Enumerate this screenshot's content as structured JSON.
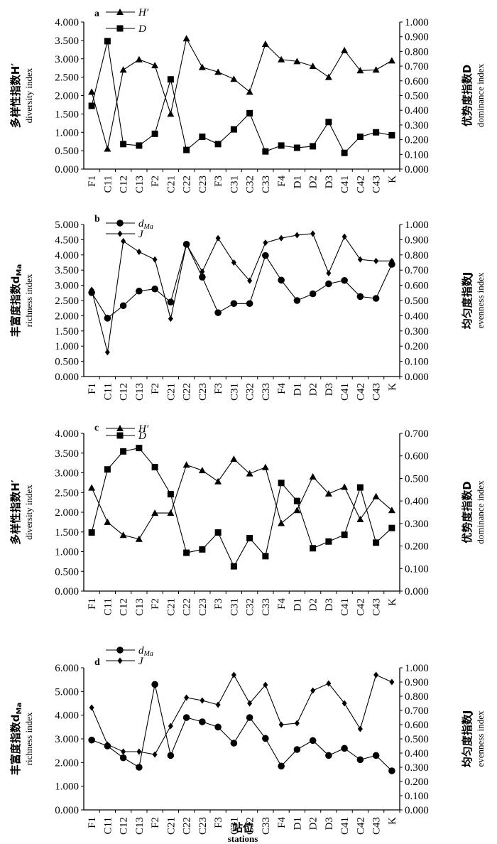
{
  "chart_data": [
    {
      "type": "line",
      "panel_label": "a",
      "categories": [
        "F1",
        "C11",
        "C12",
        "C13",
        "F2",
        "C21",
        "C22",
        "C23",
        "F3",
        "C31",
        "C32",
        "C33",
        "F4",
        "D1",
        "D2",
        "D3",
        "C41",
        "C42",
        "C43",
        "K"
      ],
      "left_axis": {
        "label_cn": "多样性指数H′",
        "label_en": "diversity index",
        "ylim": [
          0,
          4
        ],
        "ticks": [
          "0.000",
          "0.500",
          "1.000",
          "1.500",
          "2.000",
          "2.500",
          "3.000",
          "3.500",
          "4.000"
        ]
      },
      "right_axis": {
        "label_cn": "优势度指数D",
        "label_en": "dominance index",
        "ylim": [
          0,
          1
        ],
        "ticks": [
          "0.000",
          "0.100",
          "0.200",
          "0.300",
          "0.400",
          "0.500",
          "0.600",
          "0.700",
          "0.800",
          "0.900",
          "1.000"
        ]
      },
      "series": [
        {
          "name": "H′",
          "axis": "left",
          "marker": "triangle",
          "values": [
            2.1,
            0.55,
            2.7,
            2.98,
            2.82,
            1.5,
            3.55,
            2.77,
            2.64,
            2.45,
            2.1,
            3.4,
            2.98,
            2.93,
            2.8,
            2.5,
            3.23,
            2.68,
            2.7,
            2.95
          ]
        },
        {
          "name": "D",
          "axis": "right",
          "marker": "square",
          "values": [
            0.43,
            0.87,
            0.17,
            0.16,
            0.24,
            0.61,
            0.13,
            0.22,
            0.17,
            0.27,
            0.38,
            0.12,
            0.16,
            0.145,
            0.155,
            0.32,
            0.11,
            0.22,
            0.25,
            0.23
          ]
        }
      ]
    },
    {
      "type": "line",
      "panel_label": "b",
      "categories": [
        "F1",
        "C11",
        "C12",
        "C13",
        "F2",
        "C21",
        "C22",
        "C23",
        "F3",
        "C31",
        "C32",
        "C33",
        "F4",
        "D1",
        "D2",
        "D3",
        "C41",
        "C42",
        "C43",
        "K"
      ],
      "left_axis": {
        "label_cn": "丰富度指数d",
        "label_sub": "Ma",
        "label_en": "richness index",
        "ylim": [
          0,
          5
        ],
        "ticks": [
          "0.000",
          "0.500",
          "1.000",
          "1.500",
          "2.000",
          "2.500",
          "3.000",
          "3.500",
          "4.000",
          "4.500",
          "5.000"
        ]
      },
      "right_axis": {
        "label_cn": "均匀度指数J",
        "label_en": "evenness index",
        "ylim": [
          0,
          1
        ],
        "ticks": [
          "0.000",
          "0.100",
          "0.200",
          "0.300",
          "0.400",
          "0.500",
          "0.600",
          "0.700",
          "0.800",
          "0.900",
          "1.000"
        ]
      },
      "series": [
        {
          "name": "d",
          "name_sub": "Ma",
          "axis": "left",
          "marker": "circle",
          "values": [
            2.76,
            1.92,
            2.33,
            2.81,
            2.88,
            2.45,
            4.35,
            3.27,
            2.1,
            2.4,
            2.4,
            3.98,
            3.17,
            2.5,
            2.72,
            3.05,
            3.16,
            2.63,
            2.57,
            3.69
          ]
        },
        {
          "name": "J",
          "axis": "right",
          "marker": "diamond",
          "values": [
            0.57,
            0.16,
            0.89,
            0.82,
            0.77,
            0.38,
            0.87,
            0.69,
            0.91,
            0.75,
            0.63,
            0.88,
            0.91,
            0.93,
            0.94,
            0.68,
            0.92,
            0.77,
            0.76,
            0.76
          ]
        }
      ]
    },
    {
      "type": "line",
      "panel_label": "c",
      "categories": [
        "F1",
        "C11",
        "C12",
        "C13",
        "F2",
        "C21",
        "C22",
        "C23",
        "F3",
        "C31",
        "C32",
        "C33",
        "F4",
        "D1",
        "D2",
        "D3",
        "C41",
        "C42",
        "C43",
        "K"
      ],
      "left_axis": {
        "label_cn": "多样性指数H′",
        "label_en": "diversity index",
        "ylim": [
          0,
          4
        ],
        "ticks": [
          "0.000",
          "0.500",
          "1.000",
          "1.500",
          "2.000",
          "2.500",
          "3.000",
          "3.500",
          "4.000"
        ]
      },
      "right_axis": {
        "label_cn": "优势度指数D",
        "label_en": "dominance index",
        "ylim": [
          0,
          0.7
        ],
        "ticks": [
          "0.000",
          "0.100",
          "0.200",
          "0.300",
          "0.400",
          "0.500",
          "0.600",
          "0.700"
        ]
      },
      "series": [
        {
          "name": "H′",
          "axis": "left",
          "marker": "triangle",
          "values": [
            2.62,
            1.75,
            1.42,
            1.32,
            1.98,
            1.98,
            3.2,
            3.06,
            2.78,
            3.35,
            2.98,
            3.14,
            1.72,
            2.05,
            2.9,
            2.47,
            2.64,
            1.82,
            2.4,
            2.05
          ]
        },
        {
          "name": "D",
          "axis": "right",
          "marker": "square",
          "values": [
            0.26,
            0.54,
            0.62,
            0.635,
            0.55,
            0.43,
            0.17,
            0.185,
            0.26,
            0.11,
            0.235,
            0.155,
            0.48,
            0.4,
            0.19,
            0.22,
            0.25,
            0.46,
            0.215,
            0.28
          ]
        }
      ]
    },
    {
      "type": "line",
      "panel_label": "d",
      "categories": [
        "F1",
        "C11",
        "C12",
        "C13",
        "F2",
        "C21",
        "C22",
        "C23",
        "F3",
        "C31",
        "C32",
        "C33",
        "F4",
        "D1",
        "D2",
        "D3",
        "C41",
        "C42",
        "C43",
        "K"
      ],
      "left_axis": {
        "label_cn": "丰富度指数d",
        "label_sub": "Ma",
        "label_en": "richness index",
        "ylim": [
          0,
          6
        ],
        "ticks": [
          "0.000",
          "1.000",
          "2.000",
          "3.000",
          "4.000",
          "5.000",
          "6.000"
        ]
      },
      "right_axis": {
        "label_cn": "均匀度指数J",
        "label_en": "evenness index",
        "ylim": [
          0,
          1
        ],
        "ticks": [
          "0.000",
          "0.100",
          "0.200",
          "0.300",
          "0.400",
          "0.500",
          "0.600",
          "0.700",
          "0.800",
          "0.900",
          "1.000"
        ]
      },
      "series": [
        {
          "name": "d",
          "name_sub": "Ma",
          "axis": "left",
          "marker": "circle",
          "values": [
            2.95,
            2.7,
            2.2,
            1.8,
            5.3,
            2.3,
            3.9,
            3.72,
            3.5,
            2.82,
            3.9,
            3.02,
            1.85,
            2.55,
            2.93,
            2.3,
            2.6,
            2.12,
            2.3,
            1.65
          ]
        },
        {
          "name": "J",
          "axis": "right",
          "marker": "diamond",
          "values": [
            0.72,
            0.46,
            0.41,
            0.41,
            0.39,
            0.59,
            0.79,
            0.77,
            0.74,
            0.95,
            0.75,
            0.88,
            0.6,
            0.61,
            0.84,
            0.89,
            0.75,
            0.57,
            0.95,
            0.9
          ]
        }
      ]
    }
  ],
  "x_axis_title": {
    "cn": "站位",
    "en": "stations"
  }
}
